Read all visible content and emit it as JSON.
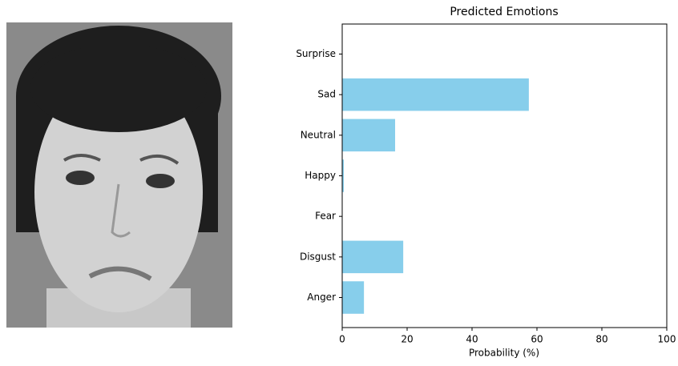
{
  "chart_data": {
    "type": "barh",
    "title": "Predicted Emotions",
    "x_label": "Probability (%)",
    "categories": [
      "Anger",
      "Disgust",
      "Fear",
      "Happy",
      "Neutral",
      "Sad",
      "Surprise"
    ],
    "values": [
      6.7,
      18.8,
      0.1,
      0.5,
      16.3,
      57.5,
      0.1
    ],
    "color": "#87ceeb",
    "xlim": [
      0,
      100
    ],
    "xticks": [
      0,
      20,
      40,
      60,
      80,
      100
    ],
    "grid": false
  }
}
